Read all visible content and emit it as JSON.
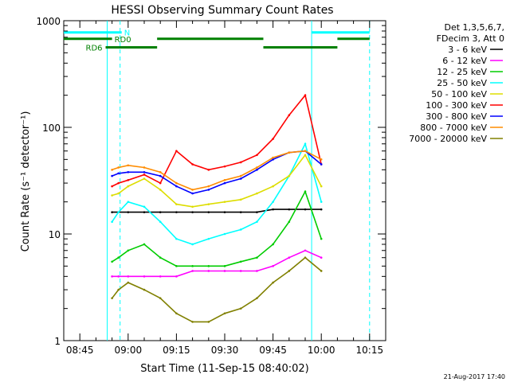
{
  "chart_data": {
    "type": "line",
    "title": "HESSI Observing Summary Count Rates",
    "xlabel": "Start Time (11-Sep-15 08:40:02)",
    "ylabel": "Count Rate (s⁻¹ detector⁻¹)",
    "y_scale": "log",
    "ylim": [
      1,
      1000
    ],
    "xlim_minutes_after_0840": [
      0,
      100
    ],
    "x_ticks": [
      {
        "label": "08:45",
        "value": 5
      },
      {
        "label": "09:00",
        "value": 20
      },
      {
        "label": "09:15",
        "value": 35
      },
      {
        "label": "09:30",
        "value": 50
      },
      {
        "label": "09:45",
        "value": 65
      },
      {
        "label": "10:00",
        "value": 80
      },
      {
        "label": "10:15",
        "value": 95
      }
    ],
    "y_ticks": [
      {
        "label": "1",
        "value": 1
      },
      {
        "label": "10",
        "value": 10
      },
      {
        "label": "100",
        "value": 100
      },
      {
        "label": "1000",
        "value": 1000
      }
    ],
    "legend_header": [
      "Det 1,3,5,6,7,",
      "FDecim 3, Att 0"
    ],
    "legend_position": "right",
    "series": [
      {
        "name": "3 - 6 keV",
        "color": "#000000",
        "x": [
          15,
          17,
          20,
          25,
          30,
          35,
          40,
          45,
          50,
          55,
          60,
          65,
          70,
          75,
          80
        ],
        "y": [
          16,
          16,
          16,
          16,
          16,
          16,
          16,
          16,
          16,
          16,
          16,
          17,
          17,
          17,
          17
        ]
      },
      {
        "name": "6 - 12 keV",
        "color": "#ff00ff",
        "x": [
          15,
          17,
          20,
          25,
          30,
          35,
          40,
          45,
          50,
          55,
          60,
          65,
          70,
          75,
          80
        ],
        "y": [
          4,
          4,
          4,
          4,
          4,
          4,
          4.5,
          4.5,
          4.5,
          4.5,
          4.5,
          5,
          6,
          7,
          6
        ]
      },
      {
        "name": "12 - 25 keV",
        "color": "#00cc00",
        "x": [
          15,
          17,
          20,
          25,
          30,
          35,
          40,
          45,
          50,
          55,
          60,
          65,
          70,
          75,
          80
        ],
        "y": [
          5.5,
          6,
          7,
          8,
          6,
          5,
          5,
          5,
          5,
          5.5,
          6,
          8,
          13,
          25,
          9
        ]
      },
      {
        "name": "25 - 50 keV",
        "color": "#00ffff",
        "x": [
          15,
          17,
          20,
          25,
          30,
          35,
          40,
          45,
          50,
          55,
          60,
          65,
          70,
          75,
          80
        ],
        "y": [
          13,
          16,
          20,
          18,
          13,
          9,
          8,
          9,
          10,
          11,
          13,
          20,
          35,
          70,
          20
        ]
      },
      {
        "name": "50 - 100 keV",
        "color": "#dddd00",
        "x": [
          15,
          17,
          20,
          25,
          30,
          35,
          40,
          45,
          50,
          55,
          60,
          65,
          70,
          75,
          80
        ],
        "y": [
          23,
          24,
          28,
          33,
          26,
          19,
          18,
          19,
          20,
          21,
          24,
          28,
          35,
          55,
          28
        ]
      },
      {
        "name": "100 - 300 keV",
        "color": "#ff0000",
        "x": [
          15,
          17,
          20,
          25,
          30,
          35,
          40,
          45,
          50,
          55,
          60,
          65,
          70,
          75,
          80
        ],
        "y": [
          28,
          30,
          32,
          36,
          30,
          60,
          45,
          40,
          43,
          47,
          55,
          78,
          130,
          200,
          45
        ]
      },
      {
        "name": "300 - 800 keV",
        "color": "#0000ff",
        "x": [
          15,
          17,
          20,
          25,
          30,
          35,
          40,
          45,
          50,
          55,
          60,
          65,
          70,
          75,
          80
        ],
        "y": [
          35,
          37,
          38,
          38,
          35,
          28,
          24,
          26,
          30,
          33,
          40,
          50,
          58,
          60,
          45
        ]
      },
      {
        "name": "800 - 7000 keV",
        "color": "#ff8c00",
        "x": [
          15,
          17,
          20,
          25,
          30,
          35,
          40,
          45,
          50,
          55,
          60,
          65,
          70,
          75,
          80
        ],
        "y": [
          40,
          42,
          44,
          42,
          38,
          30,
          26,
          28,
          32,
          35,
          42,
          52,
          58,
          60,
          50
        ]
      },
      {
        "name": "7000 - 20000 keV",
        "color": "#808000",
        "x": [
          15,
          17,
          20,
          25,
          30,
          35,
          40,
          45,
          50,
          55,
          60,
          65,
          70,
          75,
          80
        ],
        "y": [
          2.5,
          3,
          3.5,
          3,
          2.5,
          1.8,
          1.5,
          1.5,
          1.8,
          2,
          2.5,
          3.5,
          4.5,
          6,
          4.5
        ]
      }
    ],
    "segments": [
      {
        "label": "N",
        "color": "#00ffff",
        "y_log_level": 2.89,
        "ranges": [
          [
            0,
            18
          ]
        ]
      },
      {
        "label": "",
        "color": "#00ffff",
        "y_log_level": 2.89,
        "ranges": [
          [
            77,
            95
          ]
        ]
      },
      {
        "label": "RD0",
        "color": "#008000",
        "y_log_level": 2.83,
        "ranges": [
          [
            0,
            15
          ],
          [
            29,
            62
          ],
          [
            85,
            95
          ]
        ]
      },
      {
        "label": "RD6",
        "color": "#008000",
        "y_log_level": 2.75,
        "ranges": [
          [
            13,
            29
          ],
          [
            62,
            85
          ]
        ]
      }
    ],
    "vertical_lines": [
      {
        "x": 13.5,
        "color": "#00ffff",
        "style": "solid"
      },
      {
        "x": 17.5,
        "color": "#00ffff",
        "style": "dashed"
      },
      {
        "x": 77,
        "color": "#00ffff",
        "style": "solid"
      },
      {
        "x": 95,
        "color": "#00ffff",
        "style": "dashed"
      }
    ],
    "footer_date": "21-Aug-2017 17:40"
  }
}
